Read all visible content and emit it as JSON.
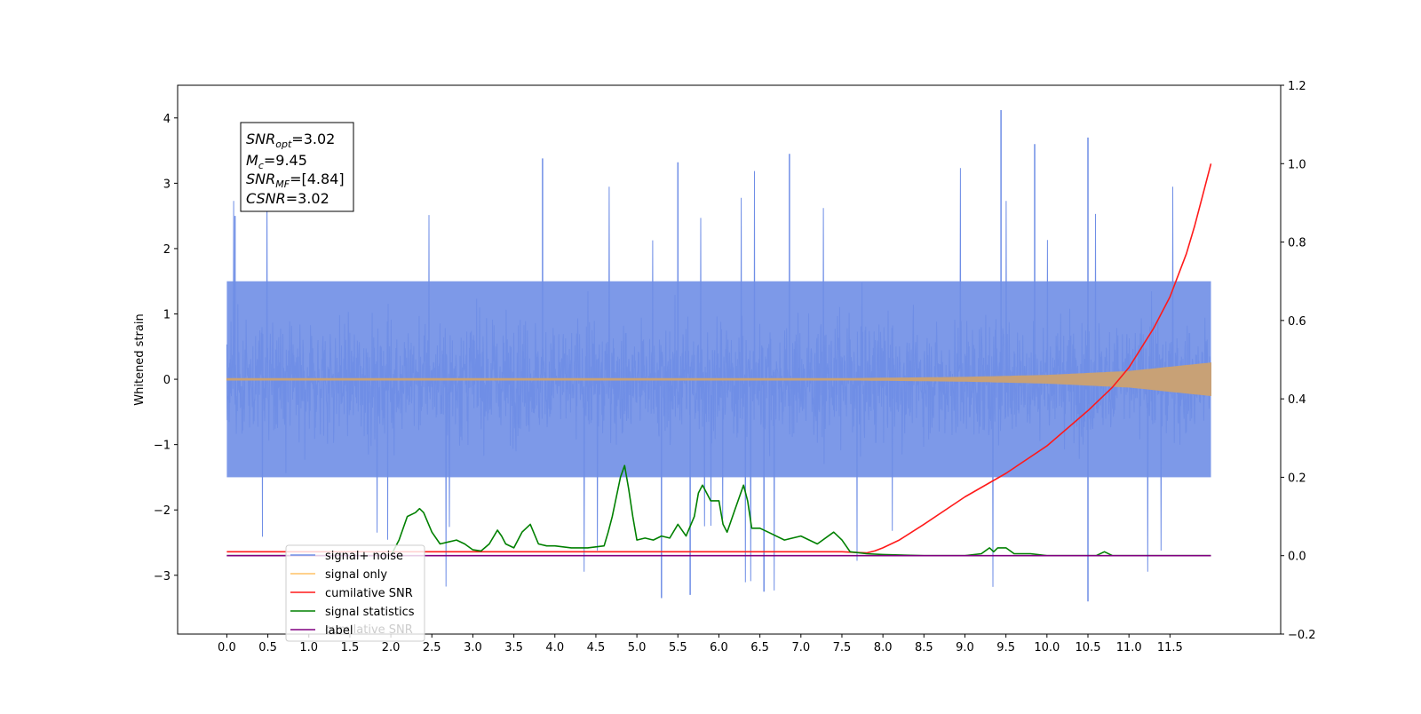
{
  "chart_data": {
    "type": "line",
    "title": "",
    "xlabel": "",
    "ylabel": "Whitened strain",
    "xlim": [
      -0.6,
      12.85
    ],
    "ylim": [
      -3.9,
      4.5
    ],
    "y2lim": [
      -0.2,
      1.2
    ],
    "x_ticks": [
      "0.0",
      "0.5",
      "1.0",
      "1.5",
      "2.0",
      "2.5",
      "3.0",
      "3.5",
      "4.0",
      "4.5",
      "5.0",
      "5.5",
      "6.0",
      "6.5",
      "7.0",
      "7.5",
      "8.0",
      "8.5",
      "9.0",
      "9.5",
      "10.0",
      "10.5",
      "11.0",
      "11.5"
    ],
    "y_ticks": [
      "−3",
      "−2",
      "−1",
      "0",
      "1",
      "2",
      "3",
      "4"
    ],
    "y2_ticks": [
      "−0.2",
      "0.0",
      "0.2",
      "0.4",
      "0.6",
      "0.8",
      "1.0",
      "1.2"
    ],
    "legend_position": "lower-left",
    "legend": [
      "signal+ noise",
      "signal only",
      "cumilative SNR",
      "signal statistics",
      "label",
      "cumilative SNR"
    ],
    "annotation": {
      "lines": [
        {
          "base": "SNR",
          "sub": "opt",
          "value": "=3.02"
        },
        {
          "base": "M",
          "sub": "c",
          "value": "=9.45"
        },
        {
          "base": "SNR",
          "sub": "MF",
          "value": "=[4.84]"
        },
        {
          "base": "CSNR",
          "sub": "",
          "value": "=3.02"
        }
      ]
    },
    "series": [
      {
        "name": "signal+ noise",
        "axis": "left",
        "color": "#6f8ee6",
        "style": "noise",
        "x_range": [
          0.0,
          12.0
        ],
        "amplitude": 1.5,
        "peak_range": [
          2.0,
          4.12
        ],
        "peaks": [
          [
            9.44,
            4.12
          ],
          [
            10.5,
            3.7
          ],
          [
            9.85,
            3.6
          ],
          [
            6.86,
            3.45
          ],
          [
            3.85,
            3.38
          ],
          [
            5.5,
            3.32
          ],
          [
            10.5,
            -3.4
          ],
          [
            5.3,
            -3.35
          ],
          [
            5.65,
            -3.3
          ],
          [
            6.55,
            -3.25
          ],
          [
            0.1,
            2.5
          ]
        ]
      },
      {
        "name": "signal only",
        "axis": "left",
        "color": "#c8a176",
        "style": "chirp",
        "x_range": [
          0.0,
          12.0
        ],
        "envelope": [
          [
            0.0,
            0.0
          ],
          [
            7.5,
            0.01
          ],
          [
            9.0,
            0.03
          ],
          [
            10.0,
            0.06
          ],
          [
            11.0,
            0.12
          ],
          [
            12.0,
            0.25
          ]
        ]
      },
      {
        "name": "cumilative SNR",
        "axis": "right",
        "color": "#ff1a1a",
        "x": [
          0,
          0.5,
          2,
          4,
          6,
          7,
          7.5,
          7.7,
          7.8,
          7.9,
          8.0,
          8.2,
          8.5,
          9.0,
          9.5,
          10.0,
          10.5,
          10.8,
          11.0,
          11.3,
          11.5,
          11.7,
          11.8,
          11.9,
          12.0
        ],
        "values": [
          0.01,
          0.01,
          0.01,
          0.01,
          0.01,
          0.01,
          0.01,
          0.008,
          0.007,
          0.012,
          0.02,
          0.04,
          0.08,
          0.15,
          0.21,
          0.28,
          0.37,
          0.43,
          0.48,
          0.58,
          0.66,
          0.77,
          0.84,
          0.92,
          1.0
        ]
      },
      {
        "name": "signal statistics",
        "axis": "right",
        "color": "#008000",
        "x": [
          0,
          2.0,
          2.1,
          2.2,
          2.3,
          2.35,
          2.4,
          2.5,
          2.6,
          2.7,
          2.8,
          2.9,
          3.0,
          3.1,
          3.2,
          3.3,
          3.35,
          3.4,
          3.5,
          3.6,
          3.7,
          3.8,
          3.9,
          4.0,
          4.2,
          4.4,
          4.6,
          4.65,
          4.7,
          4.75,
          4.8,
          4.85,
          4.9,
          4.95,
          5.0,
          5.1,
          5.2,
          5.3,
          5.4,
          5.5,
          5.6,
          5.7,
          5.75,
          5.8,
          5.9,
          6.0,
          6.05,
          6.1,
          6.2,
          6.3,
          6.35,
          6.4,
          6.5,
          6.6,
          6.8,
          7.0,
          7.2,
          7.4,
          7.5,
          7.6,
          7.8,
          8.0,
          8.5,
          9.0,
          9.2,
          9.3,
          9.35,
          9.4,
          9.5,
          9.6,
          9.8,
          10.0,
          10.5,
          10.6,
          10.7,
          10.8,
          11.0,
          11.5,
          12.0
        ],
        "values": [
          0.0,
          0.0,
          0.04,
          0.1,
          0.11,
          0.12,
          0.11,
          0.06,
          0.03,
          0.035,
          0.04,
          0.03,
          0.015,
          0.012,
          0.03,
          0.065,
          0.05,
          0.03,
          0.02,
          0.06,
          0.08,
          0.03,
          0.025,
          0.025,
          0.02,
          0.02,
          0.025,
          0.06,
          0.1,
          0.15,
          0.2,
          0.23,
          0.17,
          0.1,
          0.04,
          0.045,
          0.04,
          0.05,
          0.045,
          0.08,
          0.05,
          0.1,
          0.16,
          0.18,
          0.14,
          0.14,
          0.08,
          0.06,
          0.12,
          0.18,
          0.14,
          0.07,
          0.07,
          0.06,
          0.04,
          0.05,
          0.03,
          0.06,
          0.04,
          0.01,
          0.005,
          0.003,
          0.0,
          0.0,
          0.005,
          0.02,
          0.01,
          0.02,
          0.02,
          0.005,
          0.005,
          0.0,
          0.0,
          0.0,
          0.01,
          0.0,
          0.0,
          0.0,
          0.0
        ]
      },
      {
        "name": "label",
        "axis": "right",
        "color": "#800080",
        "x": [
          0,
          12.0
        ],
        "values": [
          0.0,
          0.0
        ]
      }
    ]
  }
}
